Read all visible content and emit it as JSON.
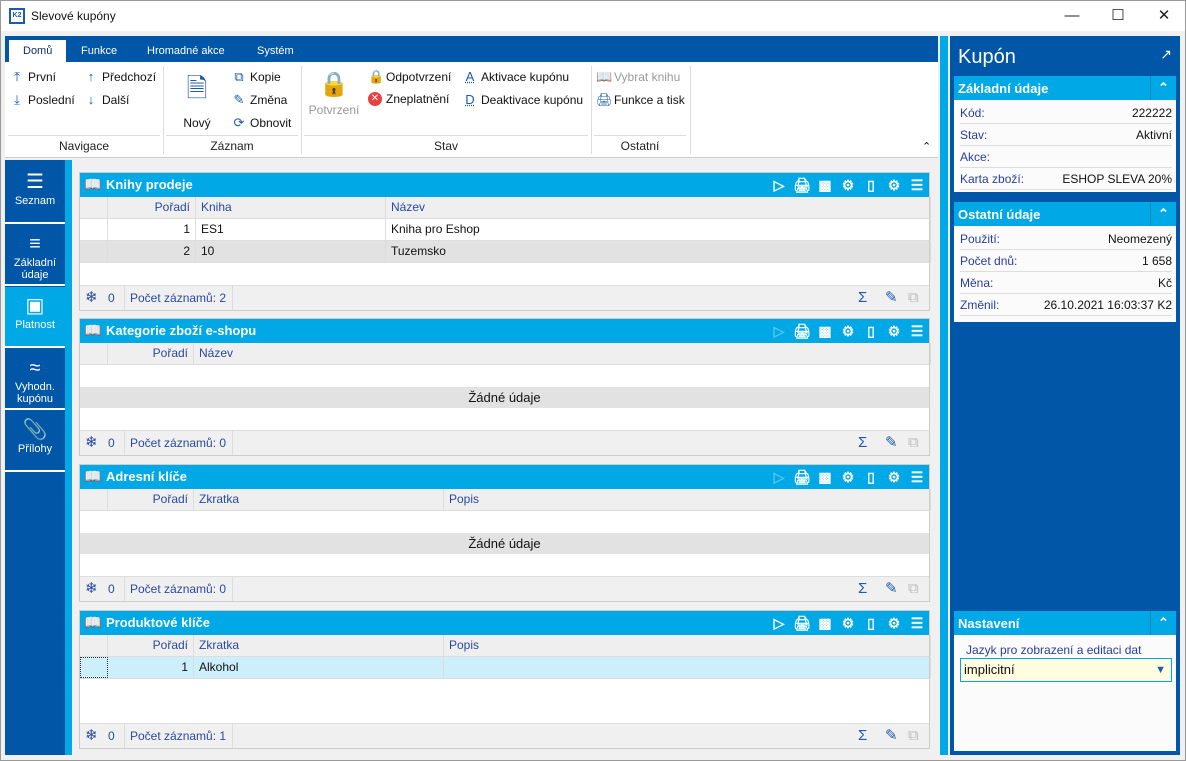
{
  "window": {
    "title": "Slevové kupóny",
    "logo": "K2"
  },
  "ribbon": {
    "tabs": [
      "Domů",
      "Funkce",
      "Hromadné akce",
      "Systém"
    ],
    "navigace": {
      "group": "Navigace",
      "prvni": "První",
      "posledni": "Poslední",
      "predchozi": "Předchozí",
      "dalsi": "Další"
    },
    "zaznam": {
      "group": "Záznam",
      "novy": "Nový",
      "kopie": "Kopie",
      "zmena": "Změna",
      "obnovit": "Obnovit"
    },
    "stav": {
      "group": "Stav",
      "potvrzeni": "Potvrzení",
      "odpotvrzeni": "Odpotvrzení",
      "zneplatneni": "Zneplatnění",
      "aktivace": "Aktivace kupónu",
      "deaktivace": "Deaktivace kupónu"
    },
    "ostatni": {
      "group": "Ostatní",
      "vybrat": "Vybrat knihu",
      "funkce": "Funkce a tisk"
    }
  },
  "nav": [
    {
      "label": "Seznam",
      "icon": "list-icon"
    },
    {
      "label": "Základní údaje",
      "icon": "details-icon"
    },
    {
      "label": "Platnost",
      "icon": "box-icon"
    },
    {
      "label": "Vyhodn. kupónu",
      "icon": "chart-icon"
    },
    {
      "label": "Přílohy",
      "icon": "paperclip-icon"
    }
  ],
  "panels": [
    {
      "title": "Knihy prodeje",
      "columns": [
        "Pořadí",
        "Kniha",
        "Název"
      ],
      "rows": [
        [
          "1",
          "ES1",
          "Kniha pro Eshop"
        ],
        [
          "2",
          "10",
          "Tuzemsko"
        ]
      ],
      "empty": "",
      "footer_count": "0",
      "footer": "Počet záznamů: 2"
    },
    {
      "title": "Kategorie zboží e-shopu",
      "columns": [
        "Pořadí",
        "Název"
      ],
      "rows": [],
      "empty": "Žádné údaje",
      "footer_count": "0",
      "footer": "Počet záznamů: 0"
    },
    {
      "title": "Adresní klíče",
      "columns": [
        "Pořadí",
        "Zkratka",
        "Popis"
      ],
      "rows": [],
      "empty": "Žádné údaje",
      "footer_count": "0",
      "footer": "Počet záznamů: 0"
    },
    {
      "title": "Produktové klíče",
      "columns": [
        "Pořadí",
        "Zkratka",
        "Popis"
      ],
      "rows": [
        [
          "1",
          "Alkohol",
          ""
        ]
      ],
      "empty": "",
      "footer_count": "0",
      "footer": "Počet záznamů: 1"
    }
  ],
  "right": {
    "title": "Kupón",
    "zakladni": {
      "title": "Základní údaje",
      "items": [
        {
          "k": "Kód:",
          "v": "222222"
        },
        {
          "k": "Stav:",
          "v": "Aktivní"
        },
        {
          "k": "Akce:",
          "v": ""
        },
        {
          "k": "Karta zboží:",
          "v": "ESHOP SLEVA 20%"
        }
      ]
    },
    "ostatni": {
      "title": "Ostatní údaje",
      "items": [
        {
          "k": "Použití:",
          "v": "Neomezený"
        },
        {
          "k": "Počet dnů:",
          "v": "1 658"
        },
        {
          "k": "Měna:",
          "v": "Kč"
        },
        {
          "k": "Změnil:",
          "v": "26.10.2021 16:03:37 K2"
        }
      ]
    },
    "nastaveni": {
      "title": "Nastavení",
      "label": "Jazyk pro zobrazení a editaci dat",
      "value": "implicitní"
    }
  },
  "colors": {
    "dark_blue": "#0156a7",
    "light_blue": "#00a8e6",
    "selected_row": "#cdeefb"
  }
}
